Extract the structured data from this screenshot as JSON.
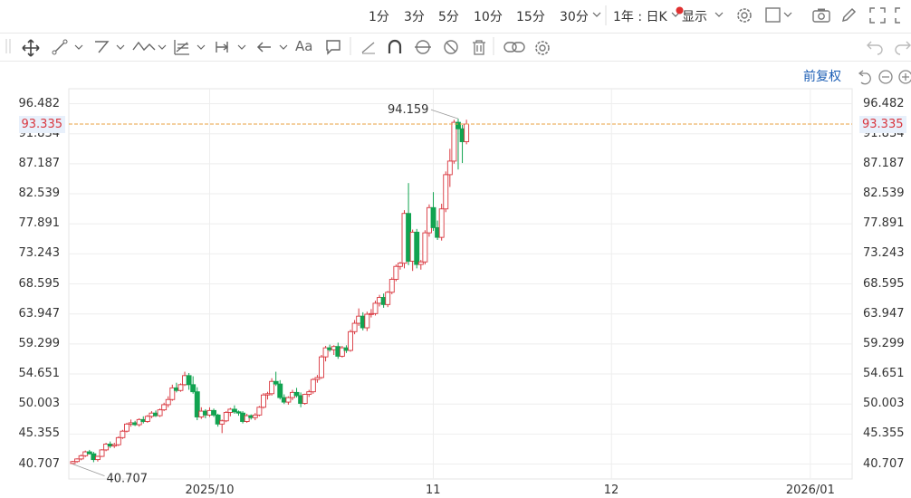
{
  "toolbar": {
    "periods": [
      "1分",
      "3分",
      "5分",
      "10分",
      "15分",
      "30分"
    ],
    "range_label": "1年 : 日K",
    "display_label": "显示"
  },
  "adjust_label": "前复权",
  "chart_data": {
    "type": "candlestick",
    "ylim": [
      38.4,
      98.8
    ],
    "y_ticks": [
      "40.707",
      "45.355",
      "50.003",
      "54.651",
      "59.299",
      "63.947",
      "68.595",
      "73.243",
      "77.891",
      "82.539",
      "87.187",
      "91.834",
      "96.482"
    ],
    "x_ticks": [
      {
        "label": "2025/10",
        "index": 33
      },
      {
        "label": "11",
        "index": 87
      },
      {
        "label": "12",
        "index": 130
      },
      {
        "label": "2026/01",
        "index": 178
      }
    ],
    "current_price": "93.335",
    "max_label": "94.159",
    "min_label": "40.707",
    "ohlc": [
      [
        40.8,
        41.2,
        40.7,
        41.1
      ],
      [
        41.1,
        41.6,
        40.9,
        41.5
      ],
      [
        41.5,
        42.2,
        41.3,
        42.0
      ],
      [
        42.0,
        42.8,
        41.8,
        42.6
      ],
      [
        42.6,
        42.9,
        42.2,
        42.3
      ],
      [
        42.3,
        42.6,
        41.0,
        41.4
      ],
      [
        41.4,
        42.0,
        41.1,
        41.9
      ],
      [
        41.9,
        43.0,
        41.8,
        42.9
      ],
      [
        42.9,
        44.0,
        42.7,
        43.8
      ],
      [
        43.8,
        44.2,
        43.2,
        43.5
      ],
      [
        43.5,
        44.0,
        43.2,
        43.7
      ],
      [
        43.7,
        45.0,
        43.5,
        44.8
      ],
      [
        44.8,
        46.0,
        44.6,
        45.8
      ],
      [
        45.8,
        47.1,
        45.6,
        46.9
      ],
      [
        46.9,
        47.6,
        46.5,
        47.1
      ],
      [
        47.1,
        47.4,
        46.6,
        46.8
      ],
      [
        46.8,
        47.8,
        46.5,
        47.6
      ],
      [
        47.6,
        48.1,
        47.0,
        47.3
      ],
      [
        47.3,
        48.3,
        47.1,
        48.1
      ],
      [
        48.1,
        48.9,
        47.8,
        48.6
      ],
      [
        48.6,
        49.0,
        48.0,
        48.2
      ],
      [
        48.2,
        49.3,
        48.0,
        49.1
      ],
      [
        49.1,
        50.2,
        48.9,
        49.9
      ],
      [
        49.9,
        51.2,
        49.5,
        50.7
      ],
      [
        50.7,
        53.0,
        50.5,
        52.5
      ],
      [
        52.5,
        53.3,
        51.8,
        52.1
      ],
      [
        52.1,
        53.2,
        51.9,
        53.0
      ],
      [
        53.0,
        55.0,
        52.8,
        54.4
      ],
      [
        54.4,
        54.8,
        52.2,
        53.0
      ],
      [
        53.0,
        54.3,
        51.6,
        51.9
      ],
      [
        51.9,
        52.6,
        47.5,
        48.0
      ],
      [
        48.0,
        49.5,
        47.7,
        48.9
      ],
      [
        48.9,
        49.2,
        47.8,
        48.3
      ],
      [
        48.3,
        49.5,
        48.0,
        49.0
      ],
      [
        49.0,
        49.3,
        48.0,
        48.3
      ],
      [
        48.3,
        48.5,
        46.5,
        46.9
      ],
      [
        46.9,
        47.6,
        45.5,
        47.4
      ],
      [
        47.4,
        48.9,
        47.2,
        48.7
      ],
      [
        48.7,
        49.4,
        48.1,
        49.2
      ],
      [
        49.2,
        49.8,
        48.5,
        48.8
      ],
      [
        48.8,
        49.0,
        48.2,
        48.6
      ],
      [
        48.6,
        48.9,
        47.0,
        47.3
      ],
      [
        47.3,
        48.5,
        47.1,
        48.2
      ],
      [
        48.2,
        48.4,
        47.6,
        47.9
      ],
      [
        47.9,
        48.6,
        47.5,
        48.3
      ],
      [
        48.3,
        49.7,
        48.1,
        49.5
      ],
      [
        49.5,
        51.7,
        49.3,
        51.4
      ],
      [
        51.4,
        51.9,
        50.7,
        51.6
      ],
      [
        51.6,
        54.0,
        51.3,
        53.5
      ],
      [
        53.5,
        55.0,
        52.8,
        53.1
      ],
      [
        53.1,
        53.7,
        50.7,
        51.0
      ],
      [
        51.0,
        51.5,
        50.0,
        50.3
      ],
      [
        50.3,
        51.2,
        49.9,
        51.0
      ],
      [
        51.0,
        52.2,
        50.6,
        51.8
      ],
      [
        51.8,
        52.5,
        51.0,
        51.3
      ],
      [
        51.3,
        51.8,
        49.5,
        50.1
      ],
      [
        50.1,
        51.6,
        49.9,
        51.5
      ],
      [
        51.5,
        52.2,
        51.1,
        51.9
      ],
      [
        51.9,
        54.0,
        51.6,
        53.8
      ],
      [
        53.8,
        54.5,
        53.3,
        54.1
      ],
      [
        54.1,
        57.6,
        53.9,
        57.3
      ],
      [
        57.3,
        59.0,
        56.6,
        58.7
      ],
      [
        58.7,
        59.2,
        58.1,
        58.4
      ],
      [
        58.4,
        59.1,
        57.6,
        58.9
      ],
      [
        58.9,
        59.5,
        57.0,
        57.4
      ],
      [
        57.4,
        59.0,
        57.2,
        58.7
      ],
      [
        58.7,
        59.1,
        57.9,
        58.3
      ],
      [
        58.3,
        61.5,
        58.1,
        61.2
      ],
      [
        61.2,
        63.0,
        60.8,
        62.5
      ],
      [
        62.5,
        64.8,
        62.1,
        63.6
      ],
      [
        63.6,
        64.2,
        61.4,
        61.8
      ],
      [
        61.8,
        64.3,
        61.3,
        63.9
      ],
      [
        63.9,
        64.7,
        63.4,
        64.0
      ],
      [
        64.0,
        66.0,
        63.7,
        65.6
      ],
      [
        65.6,
        66.9,
        65.1,
        66.5
      ],
      [
        66.5,
        67.1,
        64.9,
        65.4
      ],
      [
        65.4,
        67.5,
        65.0,
        67.3
      ],
      [
        67.3,
        69.6,
        67.0,
        69.3
      ],
      [
        69.3,
        71.6,
        69.0,
        71.3
      ],
      [
        71.3,
        72.0,
        70.8,
        71.8
      ],
      [
        71.8,
        80.0,
        71.0,
        79.5
      ],
      [
        79.5,
        84.2,
        71.5,
        72.1
      ],
      [
        72.1,
        77.0,
        70.6,
        76.6
      ],
      [
        76.6,
        77.1,
        71.0,
        71.6
      ],
      [
        71.6,
        72.3,
        70.8,
        72.0
      ],
      [
        72.0,
        76.9,
        71.6,
        76.5
      ],
      [
        76.5,
        80.9,
        75.9,
        80.4
      ],
      [
        80.4,
        82.8,
        76.8,
        77.3
      ],
      [
        77.3,
        78.4,
        75.4,
        75.8
      ],
      [
        75.8,
        81.0,
        75.3,
        80.2
      ],
      [
        80.2,
        86.0,
        79.7,
        85.5
      ],
      [
        85.5,
        89.5,
        83.6,
        87.6
      ],
      [
        87.6,
        94.0,
        87.2,
        93.6
      ],
      [
        93.6,
        94.16,
        86.3,
        92.6
      ],
      [
        92.6,
        93.2,
        87.3,
        90.6
      ],
      [
        90.6,
        94.0,
        90.2,
        93.335
      ]
    ]
  }
}
